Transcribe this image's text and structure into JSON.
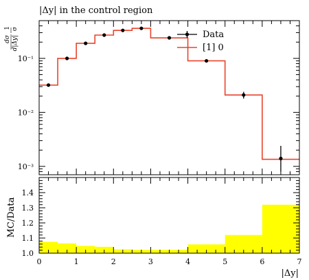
{
  "chart_data": [
    {
      "type": "line",
      "title": "|Δy| in the control region",
      "ylabel": "1/σ dσ/d|Δy|",
      "xlim": [
        0,
        7
      ],
      "ylim": [
        0.0007,
        0.5
      ],
      "yscale": "log",
      "ytick_labels": [
        "10⁻³",
        "10⁻²",
        "10⁻¹"
      ],
      "legend_position": "top-right",
      "series": [
        {
          "name": "Data",
          "style": "points-with-errorbars",
          "color": "#000000",
          "x": [
            0.25,
            0.75,
            1.25,
            1.75,
            2.25,
            2.75,
            3.5,
            4.5,
            5.5,
            6.5
          ],
          "y": [
            0.032,
            0.1,
            0.19,
            0.27,
            0.33,
            0.36,
            0.24,
            0.09,
            0.021,
            0.0014
          ],
          "yerr_lo": [
            0.0,
            0.0,
            0.0,
            0.0,
            0.0,
            0.0,
            0.0,
            0.0,
            0.003,
            0.0006
          ],
          "yerr_hi": [
            0.0,
            0.0,
            0.0,
            0.0,
            0.0,
            0.0,
            0.0,
            0.0,
            0.003,
            0.001
          ]
        },
        {
          "name": "[1] 0",
          "style": "step",
          "color": "#e8432b",
          "bin_edges": [
            0,
            0.5,
            1,
            1.5,
            2,
            2.5,
            3,
            4,
            5,
            6,
            7
          ],
          "values": [
            0.032,
            0.1,
            0.19,
            0.27,
            0.33,
            0.36,
            0.24,
            0.09,
            0.021,
            0.00135
          ]
        }
      ]
    },
    {
      "type": "bar",
      "ylabel": "MC/Data",
      "xlabel": "|Δy|",
      "xlim": [
        0,
        7
      ],
      "ylim": [
        1.0,
        1.5
      ],
      "xtick_labels": [
        "0",
        "1",
        "2",
        "3",
        "4",
        "5",
        "6",
        "7"
      ],
      "ytick_labels": [
        "1.0",
        "1.1",
        "1.2",
        "1.3",
        "1.4"
      ],
      "fill_color": "#ffff00",
      "bin_edges": [
        0,
        0.5,
        1,
        1.5,
        2,
        2.5,
        3,
        4,
        5,
        6,
        7
      ],
      "values": [
        1.075,
        1.065,
        1.048,
        1.042,
        1.025,
        1.022,
        1.022,
        1.058,
        1.12,
        1.32
      ]
    }
  ]
}
